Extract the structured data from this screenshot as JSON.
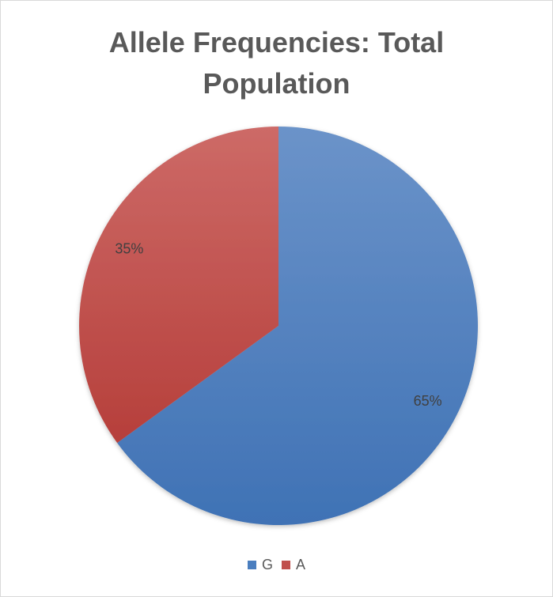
{
  "chart_data": {
    "type": "pie",
    "title": "Allele Frequencies: Total Population",
    "title_lines": [
      "Allele Frequencies: Total",
      "Population"
    ],
    "categories": [
      "G",
      "A"
    ],
    "values": [
      65,
      35
    ],
    "data_labels": [
      "65%",
      "35%"
    ],
    "colors": [
      "#4a7ebf",
      "#c0504d"
    ],
    "legend_position": "bottom"
  }
}
